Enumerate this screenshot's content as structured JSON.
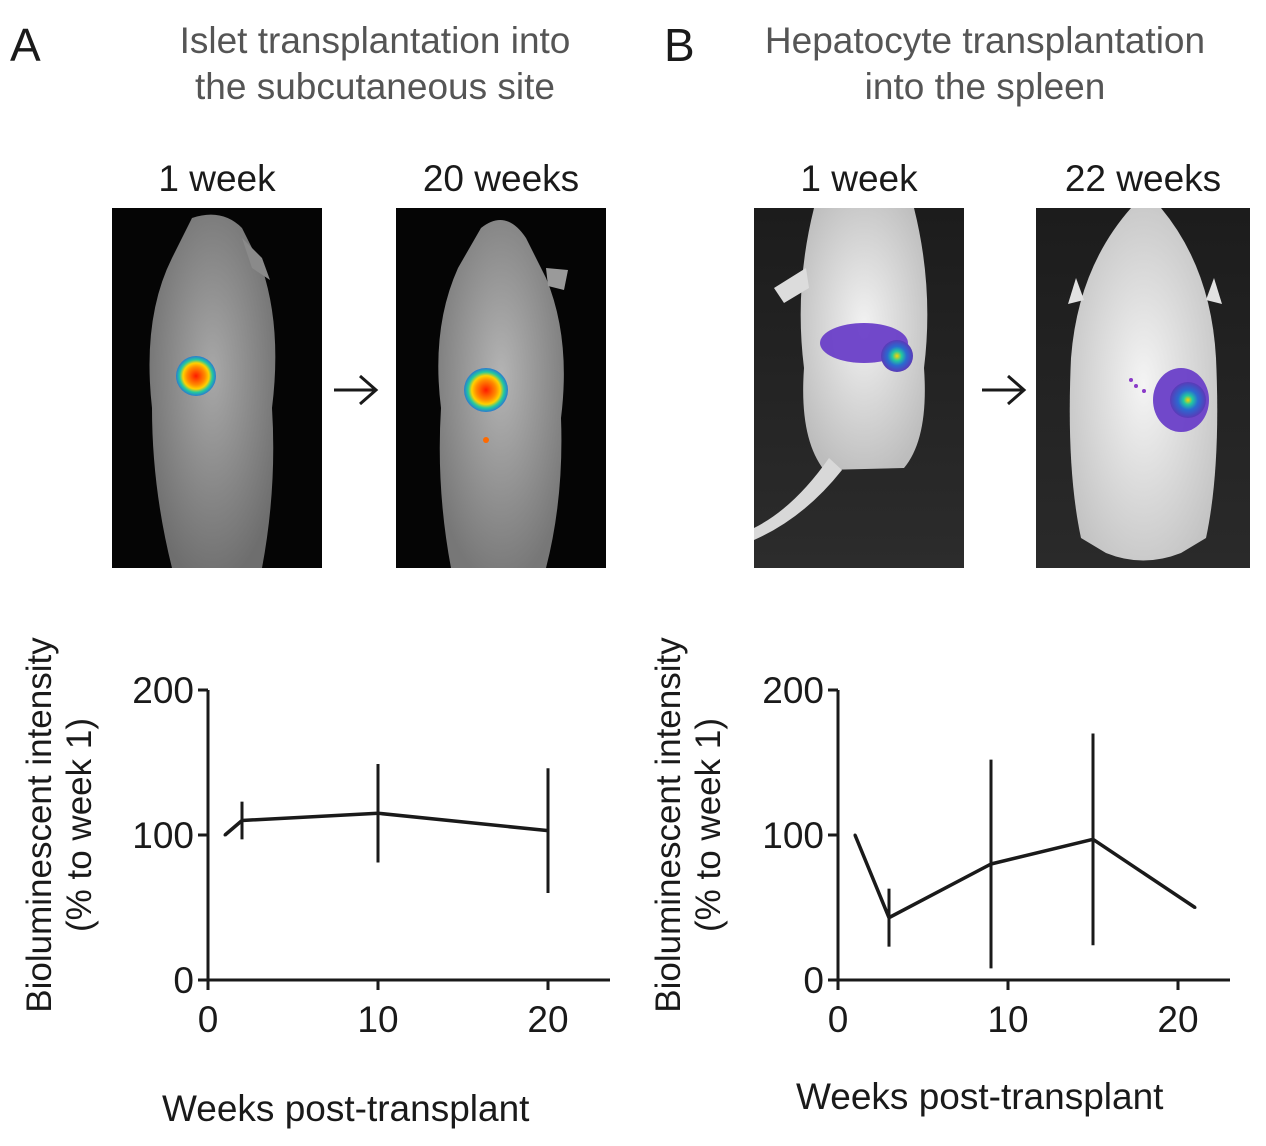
{
  "panels": [
    {
      "letter": "A",
      "title_line1": "Islet transplantation into",
      "title_line2": "the subcutaneous site",
      "image_labels": [
        "1 week",
        "20 weeks"
      ]
    },
    {
      "letter": "B",
      "title_line1": "Hepatocyte transplantation",
      "title_line2": "into the spleen",
      "image_labels": [
        "1 week",
        "22 weeks"
      ]
    }
  ],
  "colors": {
    "line": "#1a1a1a",
    "signal_hot": "#ff1a00",
    "signal_warm": "#ffd200",
    "signal_mid": "#22c9a0",
    "signal_cool": "#6a3fc8",
    "signal_low": "#3a2a9a"
  },
  "chart_data": [
    {
      "type": "line",
      "panel": "A",
      "xlabel": "Weeks post-transplant",
      "ylabel_line1": "Bioluminescent intensity",
      "ylabel_line2": "(% to week 1)",
      "xlim": [
        0,
        23
      ],
      "ylim": [
        0,
        200
      ],
      "xticks": [
        0,
        10,
        20
      ],
      "yticks": [
        0,
        100,
        200
      ],
      "series": [
        {
          "x": [
            1,
            2,
            10,
            20
          ],
          "y": [
            100,
            110,
            115,
            103
          ],
          "error": [
            0,
            13,
            34,
            43
          ]
        }
      ]
    },
    {
      "type": "line",
      "panel": "B",
      "xlabel": "Weeks post-transplant",
      "ylabel_line1": "Bioluminescent intensity",
      "ylabel_line2": "(% to week 1)",
      "xlim": [
        0,
        23
      ],
      "ylim": [
        0,
        200
      ],
      "xticks": [
        0,
        10,
        20
      ],
      "yticks": [
        0,
        100,
        200
      ],
      "series": [
        {
          "x": [
            1,
            3,
            9,
            15,
            21
          ],
          "y": [
            100,
            43,
            80,
            97,
            50
          ],
          "error": [
            0,
            20,
            72,
            73,
            0
          ]
        }
      ]
    }
  ]
}
